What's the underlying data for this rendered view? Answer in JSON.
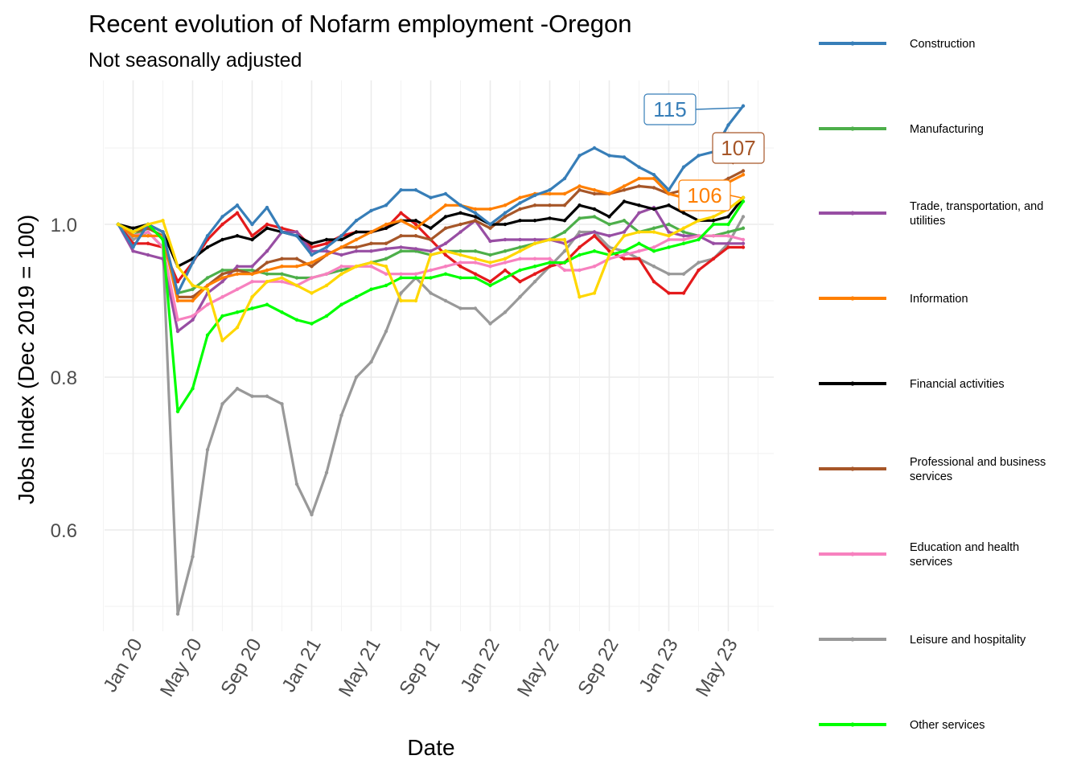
{
  "chart_data": {
    "type": "line",
    "title": "Recent evolution of Nofarm employment -Oregon",
    "subtitle": "Not seasonally adjusted",
    "xlabel": "Date",
    "ylabel": "Jobs Index (Dec 2019 = 100)",
    "ylim": [
      0.46,
      1.16
    ],
    "x_start": "Dec 2019",
    "y_ticks": [
      {
        "value": 0.6,
        "label": "0.6"
      },
      {
        "value": 0.8,
        "label": "0.8"
      },
      {
        "value": 1.0,
        "label": "1.0"
      }
    ],
    "x_ticks": [
      {
        "index": 1,
        "label": "Jan 20"
      },
      {
        "index": 5,
        "label": "May 20"
      },
      {
        "index": 9,
        "label": "Sep 20"
      },
      {
        "index": 13,
        "label": "Jan 21"
      },
      {
        "index": 17,
        "label": "May 21"
      },
      {
        "index": 21,
        "label": "Sep 21"
      },
      {
        "index": 25,
        "label": "Jan 22"
      },
      {
        "index": 29,
        "label": "May 22"
      },
      {
        "index": 33,
        "label": "Sep 22"
      },
      {
        "index": 37,
        "label": "Jan 23"
      },
      {
        "index": 41,
        "label": "May 23"
      }
    ],
    "grid": true,
    "legend_position": "right",
    "series": [
      {
        "name": "Construction",
        "color": "#377EB8",
        "values": [
          1.0,
          0.97,
          1.0,
          0.99,
          0.91,
          0.95,
          0.985,
          1.01,
          1.025,
          1.0,
          1.022,
          0.99,
          0.985,
          0.96,
          0.97,
          0.985,
          1.005,
          1.018,
          1.025,
          1.045,
          1.045,
          1.035,
          1.04,
          1.025,
          1.015,
          1.0,
          1.015,
          1.028,
          1.038,
          1.045,
          1.06,
          1.09,
          1.1,
          1.09,
          1.088,
          1.075,
          1.065,
          1.045,
          1.075,
          1.09,
          1.095,
          1.13,
          1.155
        ]
      },
      {
        "name": "",
        "color": "#E41A1C",
        "values": [
          1.0,
          0.975,
          0.975,
          0.97,
          0.925,
          0.95,
          0.98,
          1.0,
          1.015,
          0.985,
          1.0,
          0.995,
          0.99,
          0.97,
          0.975,
          0.985,
          0.99,
          0.99,
          0.995,
          1.015,
          1.0,
          0.98,
          0.96,
          0.945,
          0.935,
          0.925,
          0.94,
          0.925,
          0.935,
          0.945,
          0.95,
          0.97,
          0.985,
          0.965,
          0.955,
          0.955,
          0.925,
          0.91,
          0.91,
          0.94,
          0.955,
          0.97,
          0.97
        ]
      },
      {
        "name": "Manufacturing",
        "color": "#4DAF4A",
        "values": [
          1.0,
          0.985,
          0.995,
          0.985,
          0.91,
          0.915,
          0.93,
          0.94,
          0.94,
          0.94,
          0.935,
          0.935,
          0.93,
          0.93,
          0.935,
          0.94,
          0.945,
          0.95,
          0.955,
          0.965,
          0.965,
          0.96,
          0.965,
          0.965,
          0.965,
          0.96,
          0.965,
          0.97,
          0.975,
          0.98,
          0.99,
          1.008,
          1.01,
          1.0,
          1.005,
          0.99,
          0.995,
          1.0,
          0.99,
          0.985,
          0.985,
          0.99,
          0.995
        ]
      },
      {
        "name": "Trade, transportation, and utilities",
        "color": "#984EA3",
        "values": [
          1.0,
          0.965,
          0.96,
          0.955,
          0.86,
          0.875,
          0.91,
          0.925,
          0.945,
          0.945,
          0.965,
          0.99,
          0.99,
          0.965,
          0.965,
          0.96,
          0.965,
          0.965,
          0.968,
          0.97,
          0.968,
          0.965,
          0.975,
          0.99,
          1.005,
          0.978,
          0.98,
          0.98,
          0.98,
          0.98,
          0.975,
          0.985,
          0.99,
          0.985,
          0.99,
          1.015,
          1.022,
          0.99,
          0.985,
          0.985,
          0.975,
          0.975,
          0.975
        ]
      },
      {
        "name": "Information",
        "color": "#FF7F00",
        "values": [
          1.0,
          0.985,
          0.985,
          0.985,
          0.9,
          0.9,
          0.92,
          0.93,
          0.935,
          0.935,
          0.94,
          0.945,
          0.945,
          0.95,
          0.96,
          0.97,
          0.98,
          0.99,
          1.0,
          1.005,
          0.995,
          1.01,
          1.025,
          1.025,
          1.02,
          1.02,
          1.025,
          1.035,
          1.04,
          1.04,
          1.04,
          1.05,
          1.045,
          1.04,
          1.05,
          1.06,
          1.06,
          1.04,
          1.035,
          1.04,
          1.045,
          1.055,
          1.065
        ]
      },
      {
        "name": "Financial activities",
        "color": "#000000",
        "values": [
          1.0,
          0.995,
          1.0,
          0.99,
          0.945,
          0.955,
          0.97,
          0.98,
          0.985,
          0.98,
          0.995,
          0.99,
          0.985,
          0.975,
          0.98,
          0.98,
          0.99,
          0.99,
          0.995,
          1.005,
          1.005,
          0.995,
          1.01,
          1.015,
          1.01,
          1.0,
          1.0,
          1.005,
          1.005,
          1.008,
          1.005,
          1.025,
          1.02,
          1.01,
          1.03,
          1.025,
          1.02,
          1.025,
          1.015,
          1.005,
          1.005,
          1.01,
          1.035
        ]
      },
      {
        "name": "Professional and business services",
        "color": "#A65628",
        "values": [
          1.0,
          0.99,
          0.995,
          0.985,
          0.905,
          0.905,
          0.92,
          0.935,
          0.94,
          0.935,
          0.95,
          0.955,
          0.955,
          0.945,
          0.96,
          0.97,
          0.97,
          0.975,
          0.975,
          0.985,
          0.985,
          0.98,
          0.995,
          1.0,
          1.005,
          0.995,
          1.01,
          1.02,
          1.025,
          1.025,
          1.025,
          1.045,
          1.04,
          1.04,
          1.045,
          1.05,
          1.048,
          1.04,
          1.045,
          1.04,
          1.05,
          1.06,
          1.07
        ]
      },
      {
        "name": "Education and health services",
        "color": "#F781BF",
        "values": [
          1.0,
          0.985,
          0.99,
          0.97,
          0.875,
          0.88,
          0.895,
          0.905,
          0.915,
          0.925,
          0.925,
          0.925,
          0.92,
          0.93,
          0.935,
          0.945,
          0.945,
          0.945,
          0.935,
          0.935,
          0.935,
          0.94,
          0.945,
          0.95,
          0.95,
          0.945,
          0.95,
          0.955,
          0.955,
          0.955,
          0.94,
          0.94,
          0.945,
          0.955,
          0.96,
          0.965,
          0.97,
          0.98,
          0.98,
          0.985,
          0.985,
          0.985,
          0.98
        ]
      },
      {
        "name": "Leisure and hospitality",
        "color": "#999999",
        "values": [
          1.0,
          0.98,
          0.99,
          0.97,
          0.49,
          0.565,
          0.705,
          0.765,
          0.785,
          0.775,
          0.775,
          0.765,
          0.66,
          0.62,
          0.675,
          0.75,
          0.8,
          0.82,
          0.86,
          0.91,
          0.93,
          0.91,
          0.9,
          0.89,
          0.89,
          0.87,
          0.885,
          0.905,
          0.925,
          0.945,
          0.965,
          0.99,
          0.99,
          0.97,
          0.965,
          0.955,
          0.945,
          0.935,
          0.935,
          0.95,
          0.955,
          0.975,
          1.01
        ]
      },
      {
        "name": "Other services",
        "color": "#00FF00",
        "values": [
          1.0,
          0.99,
          1.0,
          0.98,
          0.755,
          0.785,
          0.855,
          0.88,
          0.885,
          0.89,
          0.895,
          0.885,
          0.875,
          0.87,
          0.88,
          0.895,
          0.905,
          0.915,
          0.92,
          0.93,
          0.93,
          0.93,
          0.935,
          0.93,
          0.93,
          0.92,
          0.93,
          0.94,
          0.945,
          0.95,
          0.95,
          0.96,
          0.965,
          0.96,
          0.965,
          0.975,
          0.965,
          0.97,
          0.975,
          0.98,
          1.0,
          1.0,
          1.03
        ]
      },
      {
        "name": "",
        "color": "#FFD700",
        "values": [
          1.0,
          0.99,
          1.0,
          1.005,
          0.945,
          0.92,
          0.915,
          0.848,
          0.865,
          0.905,
          0.925,
          0.93,
          0.92,
          0.91,
          0.92,
          0.935,
          0.945,
          0.95,
          0.945,
          0.9,
          0.9,
          0.96,
          0.965,
          0.96,
          0.955,
          0.95,
          0.955,
          0.965,
          0.975,
          0.98,
          0.98,
          0.905,
          0.91,
          0.96,
          0.985,
          0.99,
          0.99,
          0.985,
          0.995,
          1.005,
          1.01,
          1.02,
          1.035
        ]
      }
    ],
    "end_labels": [
      {
        "text": "115",
        "color": "#377EB8",
        "series_index": 0
      },
      {
        "text": "107",
        "color": "#A65628",
        "series_index": 6
      },
      {
        "text": "106",
        "color": "#FF7F00",
        "series_index": 4
      }
    ]
  }
}
